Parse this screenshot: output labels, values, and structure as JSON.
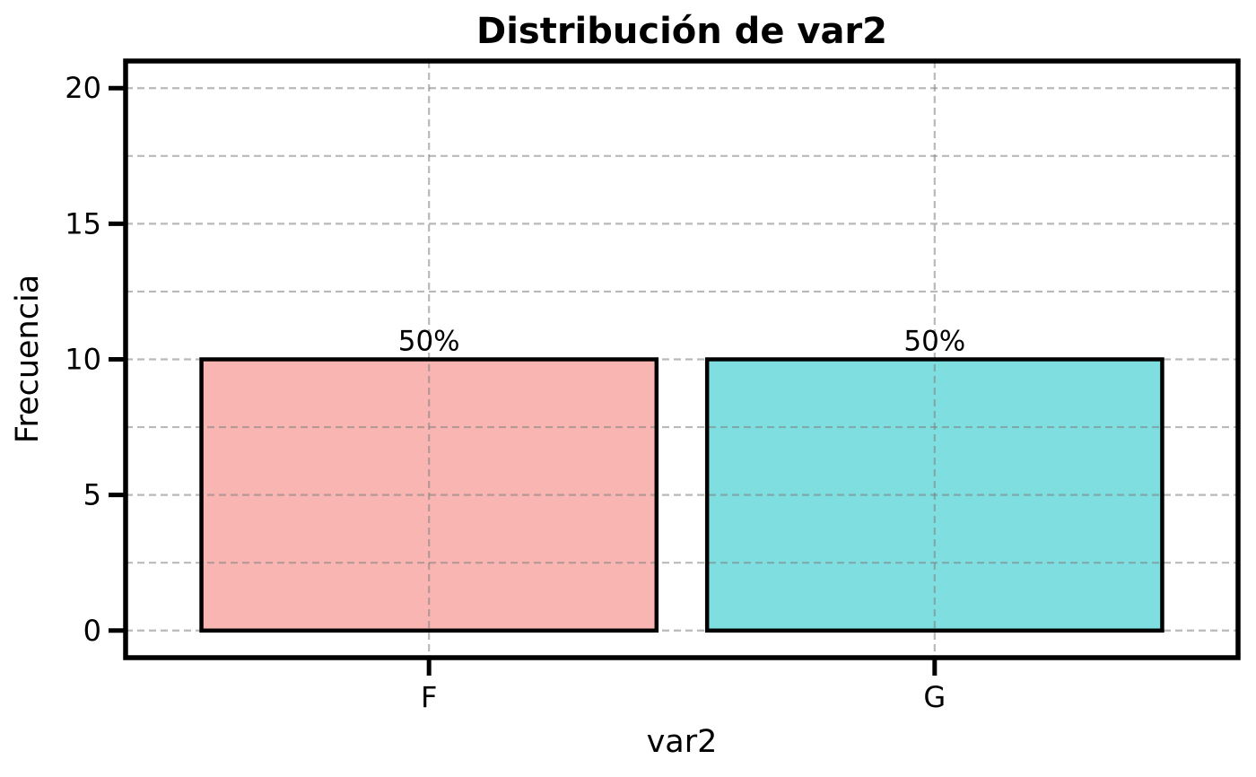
{
  "chart_data": {
    "type": "bar",
    "title": "Distribución de var2",
    "xlabel": "var2",
    "ylabel": "Frecuencia",
    "categories": [
      "F",
      "G"
    ],
    "values": [
      10,
      10
    ],
    "bar_labels": [
      "50%",
      "50%"
    ],
    "bar_colors": [
      "#F9B5B1",
      "#7EDEE0"
    ],
    "bar_edge_color": "#000000",
    "bar_width": 0.9,
    "xlim": [
      -0.6,
      1.6
    ],
    "ylim": [
      -1,
      21
    ],
    "yticks": [
      0,
      5,
      10,
      15,
      20
    ],
    "ytick_labels": [
      "0",
      "5",
      "10",
      "15",
      "20"
    ],
    "grid": true,
    "grid_interval": 2.5,
    "grid_style": "dashed",
    "grid_color": "#bcbcbc",
    "background_color": "#ffffff",
    "legend_position": "none"
  }
}
